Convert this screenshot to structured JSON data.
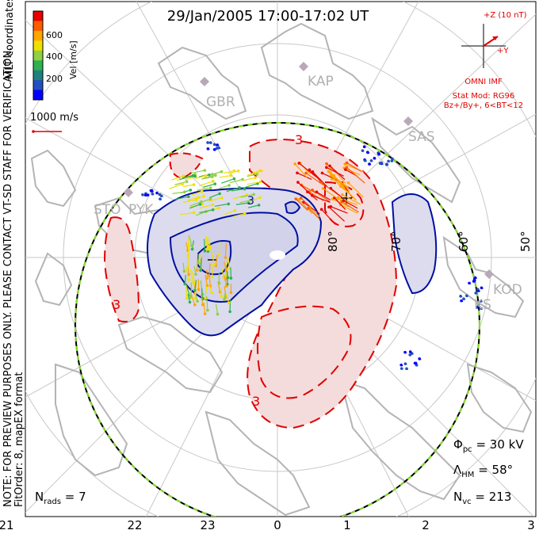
{
  "title": "29/Jan/2005 17:00-17:02 UT",
  "side_note": "NOTE: FOR PREVIEW PURPOSES ONLY. PLEASE CONTACT VT-SD STAFF FOR VERIFICATION.",
  "side_note2": "FitOrder: 8, mapEX format",
  "coord_label": "MLT coordinates",
  "colorbar": {
    "label": "Vel [m/s]",
    "ticks": [
      "600",
      "400",
      "200"
    ],
    "colors": [
      "#e60000",
      "#ff5a00",
      "#ffa500",
      "#f0e000",
      "#90d040",
      "#30b050",
      "#208080",
      "#2050c0",
      "#0000ff"
    ]
  },
  "scale_label": "1000 m/s",
  "imf": {
    "bz_label": "+Z (10 nT)",
    "by_label": "+Y",
    "source": "OMNI IMF",
    "model": "Stat Mod: RG96",
    "condition": "Bz+/By+, 6<BT<12"
  },
  "stats": {
    "phi_symbol": "Φ",
    "phi_sub": "pc",
    "phi_value": " = 30 kV",
    "lambda_symbol": "Λ",
    "lambda_sub": "HM",
    "lambda_value": " = 58°",
    "nvc_symbol": "N",
    "nvc_sub": "vc",
    "nvc_value": " = 213",
    "nrads_symbol": "N",
    "nrads_sub": "rads",
    "nrads_value": " = 7"
  },
  "mlt_ticks": [
    "21",
    "22",
    "23",
    "0",
    "1",
    "2",
    "3"
  ],
  "lat_labels": [
    "80°",
    "70°",
    "60°",
    "50°"
  ],
  "stations": [
    "KAP",
    "GBR",
    "SAS",
    "STO",
    "PYK",
    "KOD",
    "KS"
  ],
  "contour_labels": [
    "3",
    "3",
    "3",
    "3"
  ],
  "colors": {
    "positive_cell": "#e00000",
    "negative_cell": "#0010a0",
    "positive_fill": "#f5dcdc",
    "negative_fill": "#dcdcee",
    "land": "#b4b4b4",
    "grid": "#c8c8c8"
  }
}
